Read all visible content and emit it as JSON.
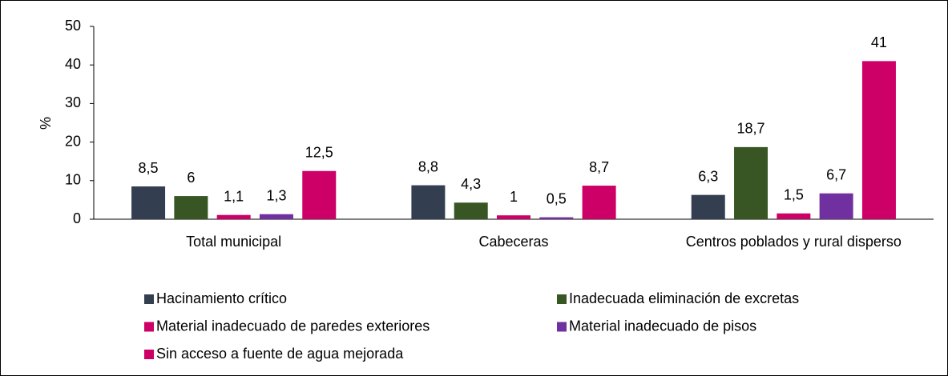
{
  "chart_data": {
    "type": "bar",
    "ylabel": "%",
    "categories": [
      "Total municipal",
      "Cabeceras",
      "Centros poblados y rural disperso"
    ],
    "series": [
      {
        "name": "Hacinamiento crítico",
        "color": "#333f50",
        "values": [
          8.5,
          8.8,
          6.3
        ],
        "value_labels": [
          "8,5",
          "8,8",
          "6,3"
        ]
      },
      {
        "name": "Inadecuada eliminación de excretas",
        "color": "#375623",
        "values": [
          6,
          4.3,
          18.7
        ],
        "value_labels": [
          "6",
          "4,3",
          "18,7"
        ]
      },
      {
        "name": "Material inadecuado de paredes exteriores",
        "color": "#cc0066",
        "values": [
          1.1,
          1,
          1.5
        ],
        "value_labels": [
          "1,1",
          "1",
          "1,5"
        ]
      },
      {
        "name": "Material inadecuado de pisos",
        "color": "#7030a0",
        "values": [
          1.3,
          0.5,
          6.7
        ],
        "value_labels": [
          "1,3",
          "0,5",
          "6,7"
        ]
      },
      {
        "name": "Sin acceso a fuente de agua mejorada",
        "color": "#cc0066",
        "values": [
          12.5,
          8.7,
          41
        ],
        "value_labels": [
          "12,5",
          "8,7",
          "41"
        ]
      }
    ],
    "ylim": [
      0,
      50
    ],
    "yticks": [
      0,
      10,
      20,
      30,
      40,
      50
    ],
    "grid": false,
    "legend": "bottom"
  }
}
